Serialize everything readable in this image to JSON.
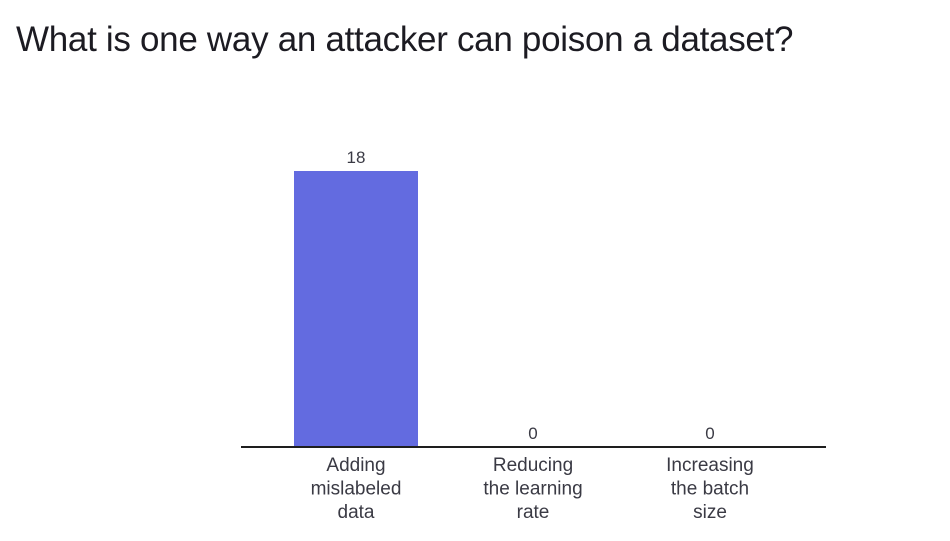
{
  "question": {
    "title": "What is one way an attacker can poison a dataset?"
  },
  "colors": {
    "bar": "#636be0",
    "axis": "#1e1e1e",
    "text": "#3a3a44"
  },
  "chart_data": {
    "type": "bar",
    "title": "What is one way an attacker can poison a dataset?",
    "categories": [
      [
        "Adding",
        "mislabeled",
        "data"
      ],
      [
        "Reducing",
        "the learning",
        "rate"
      ],
      [
        "Increasing",
        "the batch",
        "size"
      ]
    ],
    "values": [
      18,
      0,
      0
    ],
    "ylim": [
      0,
      18
    ],
    "grid": false,
    "legend": "none"
  }
}
